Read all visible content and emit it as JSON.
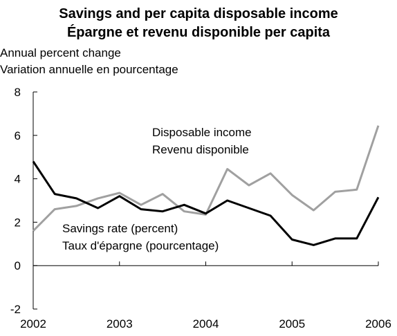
{
  "chart_data": {
    "type": "line",
    "title": "Savings and per capita disposable income",
    "subtitle": "Épargne et revenu disponible per capita",
    "ylabel": "Annual percent change",
    "ylabel_fr": "Variation annuelle en pourcentage",
    "xlabel": "",
    "ylim": [
      -2,
      8
    ],
    "yticks": [
      "-2",
      "0",
      "2",
      "4",
      "6",
      "8"
    ],
    "xticks": [
      "2002",
      "2003",
      "2004",
      "2005",
      "2006"
    ],
    "xlim": [
      2002,
      2006
    ],
    "grid": false,
    "legend": "none",
    "x": [
      2002,
      2002.25,
      2002.5,
      2002.75,
      2003,
      2003.25,
      2003.5,
      2003.75,
      2004,
      2004.25,
      2004.5,
      2004.75,
      2005,
      2005.25,
      2005.5,
      2005.75,
      2006
    ],
    "series": [
      {
        "name": "Disposable income / Revenu disponible",
        "label_lines": [
          "Disposable income",
          "Revenu disponible"
        ],
        "color": "#a0a0a0",
        "values": [
          1.6,
          2.6,
          2.75,
          3.1,
          3.35,
          2.8,
          3.3,
          2.5,
          2.35,
          4.45,
          3.7,
          4.25,
          3.25,
          2.55,
          3.4,
          3.5,
          6.45
        ]
      },
      {
        "name": "Savings rate (percent) / Taux d'épargne (pourcentage)",
        "label_lines": [
          "Savings rate (percent)",
          "Taux d'épargne (pourcentage)"
        ],
        "color": "#000000",
        "values": [
          4.8,
          3.3,
          3.1,
          2.65,
          3.2,
          2.6,
          2.5,
          2.8,
          2.4,
          3.0,
          2.65,
          2.3,
          1.2,
          0.95,
          1.25,
          1.25,
          3.15
        ]
      }
    ]
  }
}
